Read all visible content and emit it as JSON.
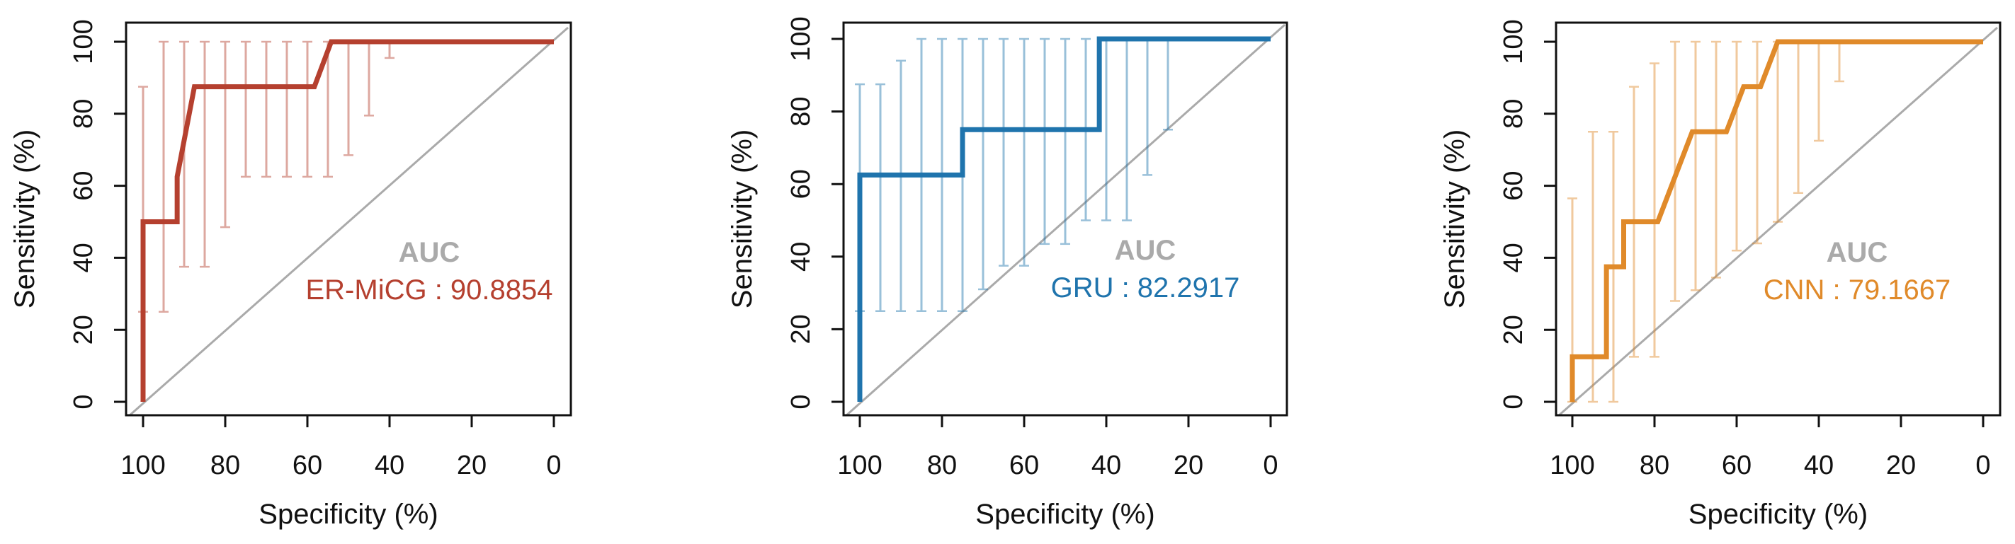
{
  "chart_data": [
    {
      "type": "line",
      "xlabel": "Specificity (%)",
      "ylabel": "Sensitivity (%)",
      "xlim": [
        100,
        0
      ],
      "ylim": [
        0,
        100
      ],
      "x_reversed": true,
      "xticks": [
        100,
        80,
        60,
        40,
        20,
        0
      ],
      "yticks": [
        0,
        20,
        40,
        60,
        80,
        100
      ],
      "color": "#b5402f",
      "auc_heading": "AUC",
      "auc_label": "ER-MiCG : 90.8854",
      "series": [
        {
          "specificity": [
            100,
            100,
            91.7,
            91.7,
            87.5,
            58.3,
            54.2,
            0
          ],
          "sensitivity": [
            0,
            50,
            50,
            62.5,
            87.5,
            87.5,
            100,
            100
          ]
        }
      ],
      "ci_bars": [
        {
          "specificity": 100,
          "low": 25,
          "high": 87.5
        },
        {
          "specificity": 95,
          "low": 25,
          "high": 100
        },
        {
          "specificity": 90,
          "low": 37.5,
          "high": 100
        },
        {
          "specificity": 85,
          "low": 37.5,
          "high": 100
        },
        {
          "specificity": 80,
          "low": 48.5,
          "high": 100
        },
        {
          "specificity": 75,
          "low": 62.5,
          "high": 100
        },
        {
          "specificity": 70,
          "low": 62.5,
          "high": 100
        },
        {
          "specificity": 65,
          "low": 62.5,
          "high": 100
        },
        {
          "specificity": 60,
          "low": 62.5,
          "high": 100
        },
        {
          "specificity": 55,
          "low": 62.5,
          "high": 100
        },
        {
          "specificity": 50,
          "low": 68.5,
          "high": 100
        },
        {
          "specificity": 45,
          "low": 79.5,
          "high": 100
        },
        {
          "specificity": 40,
          "low": 95.5,
          "high": 100
        }
      ]
    },
    {
      "type": "line",
      "xlabel": "Specificity (%)",
      "ylabel": "Sensitivity (%)",
      "xlim": [
        100,
        0
      ],
      "ylim": [
        0,
        100
      ],
      "x_reversed": true,
      "xticks": [
        100,
        80,
        60,
        40,
        20,
        0
      ],
      "yticks": [
        0,
        20,
        40,
        60,
        80,
        100
      ],
      "color": "#1f74ad",
      "auc_heading": "AUC",
      "auc_label": "GRU : 82.2917",
      "series": [
        {
          "specificity": [
            100,
            100,
            75,
            75,
            41.7,
            41.7,
            0
          ],
          "sensitivity": [
            0,
            62.5,
            62.5,
            75,
            75,
            100,
            100
          ]
        }
      ],
      "ci_bars": [
        {
          "specificity": 100,
          "low": 25,
          "high": 87.5
        },
        {
          "specificity": 95,
          "low": 25,
          "high": 87.5
        },
        {
          "specificity": 90,
          "low": 25,
          "high": 94
        },
        {
          "specificity": 85,
          "low": 25,
          "high": 100
        },
        {
          "specificity": 80,
          "low": 25,
          "high": 100
        },
        {
          "specificity": 75,
          "low": 25,
          "high": 100
        },
        {
          "specificity": 70,
          "low": 31,
          "high": 100
        },
        {
          "specificity": 65,
          "low": 37.5,
          "high": 100
        },
        {
          "specificity": 60,
          "low": 37.5,
          "high": 100
        },
        {
          "specificity": 55,
          "low": 43.5,
          "high": 100
        },
        {
          "specificity": 50,
          "low": 43.5,
          "high": 100
        },
        {
          "specificity": 45,
          "low": 50,
          "high": 100
        },
        {
          "specificity": 40,
          "low": 50,
          "high": 100
        },
        {
          "specificity": 35,
          "low": 50,
          "high": 100
        },
        {
          "specificity": 30,
          "low": 62.5,
          "high": 100
        },
        {
          "specificity": 25,
          "low": 75,
          "high": 100
        }
      ]
    },
    {
      "type": "line",
      "xlabel": "Specificity (%)",
      "ylabel": "Sensitivity (%)",
      "xlim": [
        100,
        0
      ],
      "ylim": [
        0,
        100
      ],
      "x_reversed": true,
      "xticks": [
        100,
        80,
        60,
        40,
        20,
        0
      ],
      "yticks": [
        0,
        20,
        40,
        60,
        80,
        100
      ],
      "color": "#e08a2a",
      "auc_heading": "AUC",
      "auc_label": "CNN : 79.1667",
      "series": [
        {
          "specificity": [
            100,
            100,
            91.7,
            91.7,
            87.5,
            87.5,
            79.2,
            70.8,
            62.5,
            58.3,
            54.2,
            50,
            0
          ],
          "sensitivity": [
            0,
            12.5,
            12.5,
            37.5,
            37.5,
            50,
            50,
            75,
            75,
            87.5,
            87.5,
            100,
            100
          ]
        }
      ],
      "ci_bars": [
        {
          "specificity": 100,
          "low": 0,
          "high": 56.5
        },
        {
          "specificity": 95,
          "low": 0,
          "high": 75
        },
        {
          "specificity": 90,
          "low": 0,
          "high": 75
        },
        {
          "specificity": 85,
          "low": 12.5,
          "high": 87.5
        },
        {
          "specificity": 80,
          "low": 12.5,
          "high": 94
        },
        {
          "specificity": 75,
          "low": 28,
          "high": 100
        },
        {
          "specificity": 70,
          "low": 31,
          "high": 100
        },
        {
          "specificity": 65,
          "low": 34.5,
          "high": 100
        },
        {
          "specificity": 60,
          "low": 42,
          "high": 100
        },
        {
          "specificity": 55,
          "low": 44,
          "high": 100
        },
        {
          "specificity": 50,
          "low": 50,
          "high": 100
        },
        {
          "specificity": 45,
          "low": 58,
          "high": 100
        },
        {
          "specificity": 40,
          "low": 72.5,
          "high": 100
        },
        {
          "specificity": 35,
          "low": 89,
          "high": 100
        }
      ]
    }
  ],
  "colors": {
    "auc_heading": "#aaaaaa",
    "diagonal": "#aaaaaa",
    "axis": "#111111"
  }
}
